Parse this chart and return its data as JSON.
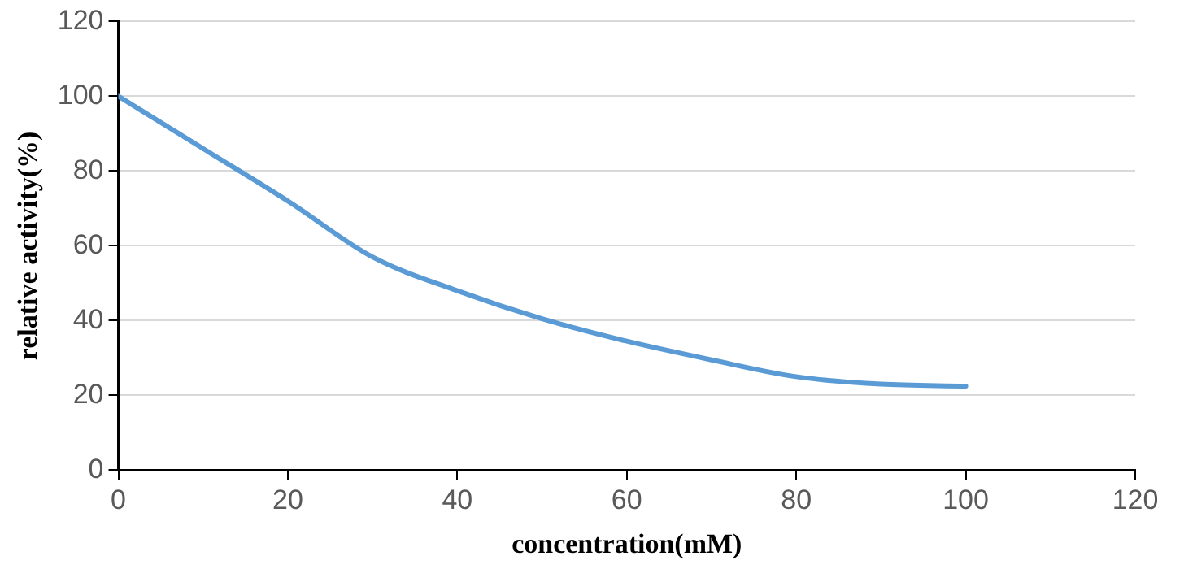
{
  "chart_data": {
    "type": "line",
    "xlabel": "concentration(mM)",
    "ylabel": "relative activity(%)",
    "x": [
      0,
      10,
      20,
      30,
      40,
      50,
      60,
      70,
      80,
      90,
      100
    ],
    "series": [
      {
        "color": "#5b9bd5",
        "values": [
          100,
          86,
          72,
          57,
          48,
          40.5,
          34.5,
          29.5,
          25,
          23,
          22.5
        ]
      }
    ],
    "xlim": [
      0,
      120
    ],
    "xticks": [
      0,
      20,
      40,
      60,
      80,
      100,
      120
    ],
    "ylim": [
      0,
      120
    ],
    "yticks": [
      0,
      20,
      40,
      60,
      80,
      100,
      120
    ],
    "grid": "y",
    "legend": false,
    "marker": "none",
    "line_style": "solid"
  }
}
